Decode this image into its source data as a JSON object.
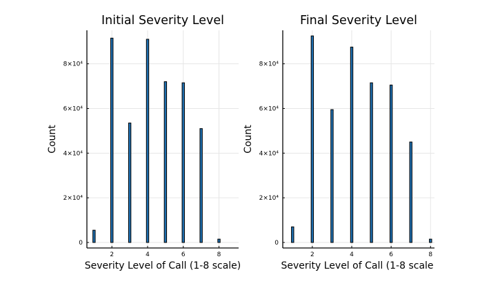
{
  "chart_data": [
    {
      "type": "bar",
      "title": "Initial Severity Level",
      "xlabel": "Severity Level of Call (1-8 scale)",
      "ylabel": "Count",
      "categories": [
        1,
        2,
        3,
        4,
        5,
        6,
        7,
        8
      ],
      "values": [
        5500,
        91500,
        53500,
        91000,
        72000,
        71500,
        51000,
        1500
      ],
      "xlim": [
        0.6,
        9.1
      ],
      "ylim": [
        0,
        95000
      ],
      "xticks": [
        2,
        4,
        6,
        8
      ],
      "xtick_labels": [
        "2",
        "4",
        "6",
        "8"
      ],
      "yticks": [
        0,
        20000,
        40000,
        60000,
        80000
      ],
      "ytick_labels": [
        "0",
        "2×10⁴",
        "4×10⁴",
        "6×10⁴",
        "8×10⁴"
      ],
      "grid": true,
      "color": "#1f6fb0"
    },
    {
      "type": "bar",
      "title": "Final Severity Level",
      "xlabel": "Severity Level of Call (1-8 scale",
      "ylabel": "Count",
      "categories": [
        1,
        2,
        3,
        4,
        5,
        6,
        7,
        8
      ],
      "values": [
        7000,
        92500,
        59500,
        87500,
        71500,
        70500,
        45000,
        1500
      ],
      "xlim": [
        0.5,
        8.2
      ],
      "ylim": [
        0,
        95000
      ],
      "xticks": [
        2,
        4,
        6,
        8
      ],
      "xtick_labels": [
        "2",
        "4",
        "6",
        "8"
      ],
      "yticks": [
        0,
        20000,
        40000,
        60000,
        80000
      ],
      "ytick_labels": [
        "0",
        "2×10⁴",
        "4×10⁴",
        "6×10⁴",
        "8×10⁴"
      ],
      "grid": true,
      "color": "#1f6fb0"
    }
  ]
}
